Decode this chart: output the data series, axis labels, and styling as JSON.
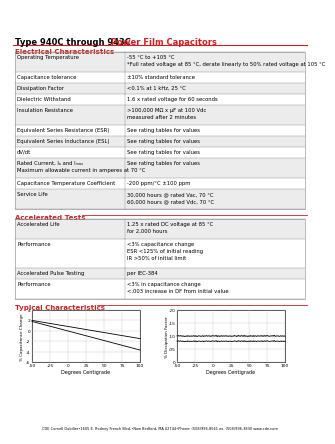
{
  "title_black": "Type 940C through 943C",
  "title_red": " Power Film Capacitors",
  "section1": "Electrical Characteristics",
  "section2": "Accelerated Tests",
  "section3": "Typical Characteristics",
  "elec_table": [
    [
      "Operating Temperature",
      "-55 °C to +105 °C\n*Full rated voltage at 85 °C, derate linearly to 50% rated voltage at 105 °C"
    ],
    [
      "Capacitance tolerance",
      "±10% standard tolerance"
    ],
    [
      "Dissipation Factor",
      "<0.1% at 1 kHz, 25 °C"
    ],
    [
      "Dielectric Withstand",
      "1.6 x rated voltage for 60 seconds"
    ],
    [
      "Insulation Resistance",
      ">100,000 MΩ x µF at 100 Vdc\nmeasured after 2 minutes"
    ],
    [
      "Equivalent Series Resistance (ESR)",
      "See rating tables for values"
    ],
    [
      "Equivalent Series Inductance (ESL)",
      "See rating tables for values"
    ],
    [
      "dV/dt",
      "See rating tables for values"
    ],
    [
      "Rated Current, Iₐ and Iₘₐₓ\nMaximum allowable current in amperes at 70 °C",
      "See rating tables for values"
    ],
    [
      "Capacitance Temperature Coefficient",
      "-200 ppm/°C ±100 ppm"
    ],
    [
      "Service Life",
      "30,000 hours @ rated Vac, 70 °C\n60,000 hours @ rated Vdc, 70 °C"
    ]
  ],
  "accel_table": [
    [
      "Accelerated Life",
      "1.25 x rated DC voltage at 85 °C\nfor 2,000 hours"
    ],
    [
      "Performance",
      "<3% capacitance change\nESR <125% of initial reading\nIR >50% of initial limit"
    ],
    [
      "Accelerated Pulse Testing",
      "per IEC-384"
    ],
    [
      "Performance",
      "<3% in capacitance change\n<.003 increase in DF from initial value"
    ]
  ],
  "footer": "CDE Cornell Dubilier•1605 E. Rodney French Blvd.•New Bedford, MA 02744•Phone: (508)996-8561 ex. (508)996-3830 www.cde.com",
  "red_color": "#cc2222",
  "chart1_yticks": [
    -6,
    -4,
    -2,
    0,
    2,
    4
  ],
  "chart1_xticks": [
    -50,
    -25,
    0,
    25,
    50,
    75,
    100
  ],
  "chart1_xrange": [
    -50,
    100
  ],
  "chart1_yrange": [
    -6,
    4
  ],
  "chart2_yticks": [
    0,
    0.05,
    0.1,
    0.15,
    0.2
  ],
  "chart2_ylabels": [
    "0",
    ".05",
    ".10",
    ".15",
    ".20"
  ],
  "chart2_xticks": [
    -50,
    -25,
    0,
    25,
    50,
    75,
    100
  ],
  "chart2_xrange": [
    -50,
    100
  ],
  "chart2_yrange": [
    0,
    0.2
  ]
}
